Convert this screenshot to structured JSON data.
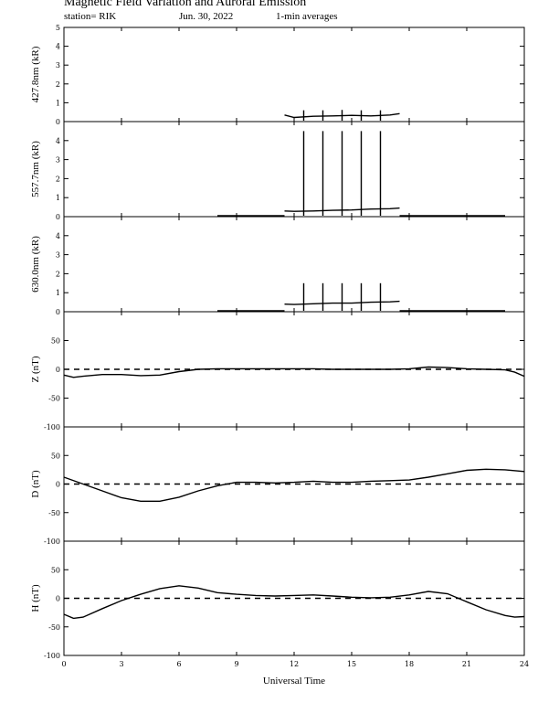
{
  "header": {
    "title": "Magnetic Field Variation and Auroral Emission",
    "station": "station= RIK",
    "date": "Jun. 30, 2022",
    "averaging": "1-min averages"
  },
  "chart_data": [
    {
      "type": "line",
      "ylabel": "427.8nm (kR)",
      "ylim": [
        0,
        5
      ],
      "yticks": [
        0,
        1,
        2,
        3,
        4,
        5
      ],
      "segments": [
        {
          "x": [
            11.5,
            12.0,
            13.0,
            14.0,
            15.0,
            16.0,
            17.0,
            17.5
          ],
          "y": [
            0.35,
            0.22,
            0.28,
            0.3,
            0.33,
            0.3,
            0.35,
            0.42
          ]
        }
      ],
      "spikes": [
        {
          "x": 12.5,
          "y": 0.6
        },
        {
          "x": 13.5,
          "y": 0.6
        },
        {
          "x": 14.5,
          "y": 0.62
        },
        {
          "x": 15.5,
          "y": 0.6
        },
        {
          "x": 16.5,
          "y": 0.6
        }
      ]
    },
    {
      "type": "line",
      "ylabel": "557.7nm (kR)",
      "ylim": [
        0,
        5
      ],
      "yticks": [
        0,
        1,
        2,
        3,
        4
      ],
      "segments": [
        {
          "x": [
            8.0,
            11.5
          ],
          "y": [
            0.05,
            0.05
          ]
        },
        {
          "x": [
            11.5,
            12.0,
            13.0,
            14.0,
            15.0,
            16.0,
            17.0,
            17.5
          ],
          "y": [
            0.3,
            0.28,
            0.3,
            0.33,
            0.35,
            0.4,
            0.42,
            0.45
          ]
        },
        {
          "x": [
            17.5,
            23.0
          ],
          "y": [
            0.05,
            0.05
          ]
        }
      ],
      "spikes": [
        {
          "x": 12.5,
          "y": 4.5
        },
        {
          "x": 13.5,
          "y": 4.5
        },
        {
          "x": 14.5,
          "y": 4.5
        },
        {
          "x": 15.5,
          "y": 4.5
        },
        {
          "x": 16.5,
          "y": 4.5
        }
      ]
    },
    {
      "type": "line",
      "ylabel": "630.0nm (kR)",
      "ylim": [
        0,
        5
      ],
      "yticks": [
        0,
        1,
        2,
        3,
        4
      ],
      "segments": [
        {
          "x": [
            8.0,
            11.5
          ],
          "y": [
            0.05,
            0.05
          ]
        },
        {
          "x": [
            11.5,
            12.0,
            13.0,
            14.0,
            15.0,
            16.0,
            17.0,
            17.5
          ],
          "y": [
            0.4,
            0.38,
            0.42,
            0.45,
            0.45,
            0.5,
            0.52,
            0.55
          ]
        },
        {
          "x": [
            17.5,
            23.0
          ],
          "y": [
            0.05,
            0.05
          ]
        }
      ],
      "spikes": [
        {
          "x": 12.5,
          "y": 1.5
        },
        {
          "x": 13.5,
          "y": 1.5
        },
        {
          "x": 14.5,
          "y": 1.5
        },
        {
          "x": 15.5,
          "y": 1.5
        },
        {
          "x": 16.5,
          "y": 1.5
        }
      ]
    },
    {
      "type": "line",
      "ylabel": "Z (nT)",
      "ylim": [
        -100,
        100
      ],
      "yticks": [
        -100,
        -50,
        0,
        50
      ],
      "zero_line": true,
      "segments": [
        {
          "x": [
            0,
            0.5,
            1,
            2,
            3,
            4,
            5,
            6,
            7,
            8,
            9,
            10,
            11,
            12,
            13,
            14,
            15,
            16,
            17,
            18,
            19,
            20,
            21,
            22,
            23,
            23.5,
            24
          ],
          "y": [
            -10,
            -14,
            -12,
            -9,
            -9,
            -11,
            -10,
            -4,
            0,
            1,
            1,
            1,
            1,
            1,
            1,
            0,
            0,
            0,
            0,
            1,
            4,
            3,
            1,
            0,
            -1,
            -5,
            -12
          ]
        }
      ]
    },
    {
      "type": "line",
      "ylabel": "D (nT)",
      "ylim": [
        -100,
        100
      ],
      "yticks": [
        -100,
        -50,
        0,
        50
      ],
      "zero_line": true,
      "segments": [
        {
          "x": [
            0,
            1,
            2,
            3,
            4,
            5,
            6,
            7,
            8,
            9,
            10,
            11,
            12,
            13,
            14,
            15,
            16,
            17,
            18,
            19,
            20,
            21,
            22,
            23,
            24
          ],
          "y": [
            12,
            0,
            -12,
            -24,
            -30,
            -30,
            -23,
            -12,
            -3,
            3,
            3,
            2,
            3,
            5,
            3,
            3,
            5,
            6,
            7,
            12,
            18,
            24,
            26,
            25,
            22
          ]
        }
      ]
    },
    {
      "type": "line",
      "ylabel": "H (nT)",
      "ylim": [
        -100,
        100
      ],
      "yticks": [
        -100,
        -50,
        0,
        50
      ],
      "zero_line": true,
      "segments": [
        {
          "x": [
            0,
            0.5,
            1,
            2,
            3,
            4,
            5,
            6,
            7,
            8,
            9,
            10,
            11,
            12,
            13,
            14,
            15,
            16,
            17,
            18,
            19,
            20,
            21,
            22,
            23,
            23.5,
            24
          ],
          "y": [
            -28,
            -35,
            -33,
            -18,
            -4,
            7,
            17,
            22,
            18,
            10,
            7,
            5,
            4,
            5,
            6,
            4,
            2,
            1,
            2,
            6,
            12,
            8,
            -6,
            -20,
            -30,
            -33,
            -32
          ]
        }
      ]
    }
  ],
  "xaxis": {
    "label": "Universal Time",
    "xlim": [
      0,
      24
    ],
    "ticks": [
      0,
      3,
      6,
      9,
      12,
      15,
      18,
      21,
      24
    ]
  }
}
